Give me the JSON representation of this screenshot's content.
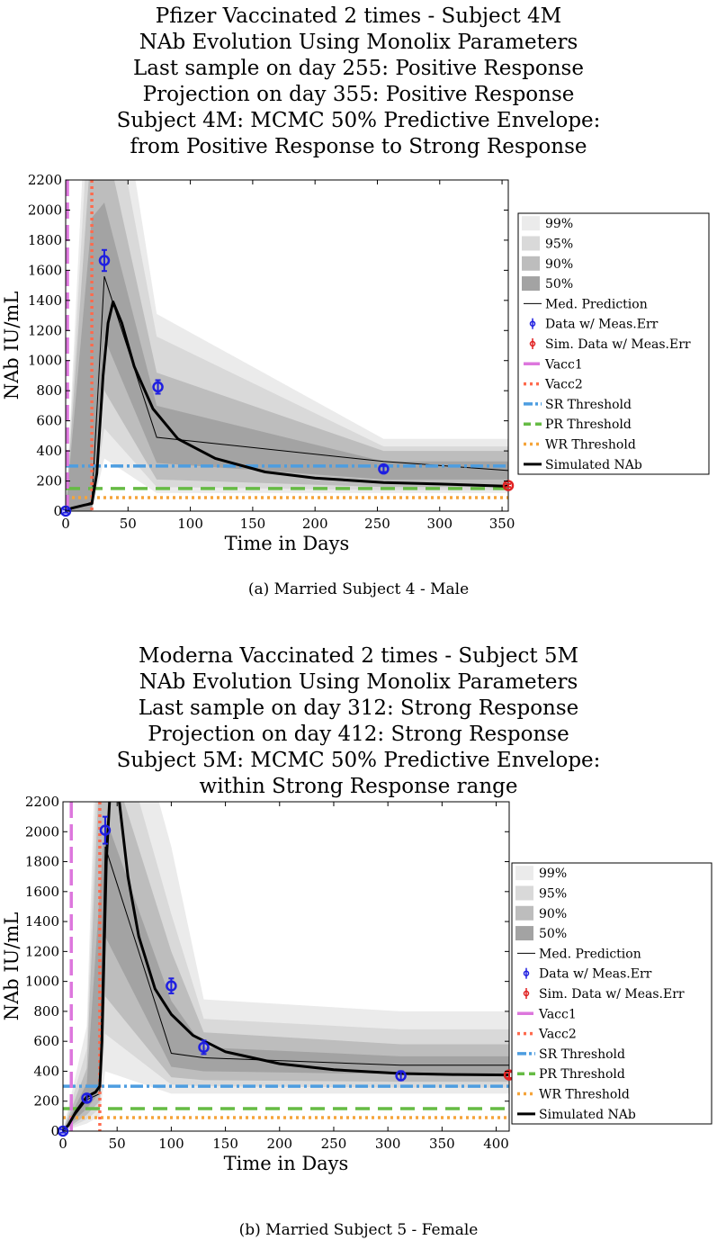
{
  "chart_data": [
    {
      "type": "line",
      "title_lines": [
        "Pfizer Vaccinated 2 times - Subject 4M",
        "NAb Evolution Using Monolix Parameters",
        "Last sample on day 255: Positive Response",
        "Projection on day 355: Positive Response",
        "Subject 4M: MCMC 50% Predictive Envelope:",
        "from Positive Response to Strong Response"
      ],
      "xlabel": "Time in Days",
      "ylabel": "NAb IU/mL",
      "xlim": [
        0,
        355
      ],
      "ylim": [
        0,
        2200
      ],
      "xticks": [
        0,
        50,
        100,
        150,
        200,
        250,
        300,
        350
      ],
      "yticks": [
        0,
        200,
        400,
        600,
        800,
        1000,
        1200,
        1400,
        1600,
        1800,
        2000,
        2200
      ],
      "legend_position": "outside-right",
      "legend": [
        "99%",
        "95%",
        "90%",
        "50%",
        "Med. Prediction",
        "Data w/ Meas.Err",
        "Sim. Data w/ Meas.Err",
        "Vacc1",
        "Vacc2",
        "SR Threshold",
        "PR Threshold",
        "WR Threshold",
        "Simulated NAb"
      ],
      "vacc1": 0,
      "vacc2": 21,
      "thresholds": {
        "SR": 300,
        "PR": 150,
        "WR": 90
      },
      "bands": {
        "x": [
          0,
          21,
          31,
          73,
          255,
          355
        ],
        "p99": {
          "lo": [
            0,
            0,
            350,
            120,
            120,
            120
          ],
          "hi": [
            0,
            3500,
            3500,
            1310,
            480,
            480
          ]
        },
        "p95": {
          "lo": [
            0,
            0,
            550,
            160,
            140,
            140
          ],
          "hi": [
            0,
            3000,
            3000,
            1160,
            430,
            430
          ]
        },
        "p90": {
          "lo": [
            0,
            0,
            800,
            210,
            160,
            160
          ],
          "hi": [
            0,
            2500,
            2500,
            920,
            400,
            400
          ]
        },
        "p50": {
          "lo": [
            0,
            0,
            1150,
            320,
            210,
            210
          ],
          "hi": [
            0,
            1950,
            2050,
            700,
            330,
            330
          ]
        }
      },
      "median": {
        "x": [
          0,
          21,
          31,
          73,
          255,
          355
        ],
        "y": [
          0,
          60,
          1560,
          490,
          330,
          270
        ]
      },
      "simulated": {
        "x": [
          0,
          5,
          15,
          21,
          25,
          30,
          34,
          38,
          45,
          55,
          70,
          90,
          120,
          160,
          200,
          255,
          300,
          355
        ],
        "y": [
          0,
          20,
          40,
          50,
          250,
          900,
          1250,
          1390,
          1250,
          960,
          680,
          480,
          350,
          260,
          220,
          190,
          180,
          165
        ]
      },
      "data_points": [
        {
          "x": 0,
          "y": 0,
          "err": 10
        },
        {
          "x": 31,
          "y": 1665,
          "err": 70
        },
        {
          "x": 74,
          "y": 825,
          "err": 45
        },
        {
          "x": 255,
          "y": 280,
          "err": 20
        }
      ],
      "sim_points": [
        {
          "x": 355,
          "y": 170,
          "err": 10
        }
      ],
      "caption": "(a) Married Subject 4 - Male"
    },
    {
      "type": "line",
      "title_lines": [
        "Moderna Vaccinated 2 times - Subject 5M",
        "NAb Evolution Using Monolix Parameters",
        "Last sample on day 312: Strong Response",
        "Projection on day 412: Strong Response",
        "Subject 5M: MCMC 50% Predictive Envelope:",
        "within Strong Response range"
      ],
      "xlabel": "Time in Days",
      "ylabel": "NAb IU/mL",
      "xlim": [
        0,
        412
      ],
      "ylim": [
        0,
        2200
      ],
      "xticks": [
        0,
        50,
        100,
        150,
        200,
        250,
        300,
        350,
        400
      ],
      "yticks": [
        0,
        200,
        400,
        600,
        800,
        1000,
        1200,
        1400,
        1600,
        1800,
        2000,
        2200
      ],
      "legend_position": "outside-right",
      "legend": [
        "99%",
        "95%",
        "90%",
        "50%",
        "Med. Prediction",
        "Data w/ Meas.Err",
        "Sim. Data w/ Meas.Err",
        "Vacc1",
        "Vacc2",
        "SR Threshold",
        "PR Threshold",
        "WR Threshold",
        "Simulated NAb"
      ],
      "vacc1": 6,
      "vacc2": 34,
      "thresholds": {
        "SR": 300,
        "PR": 150,
        "WR": 90
      },
      "bands": {
        "x": [
          0,
          22,
          34,
          39,
          100,
          130,
          312,
          412
        ],
        "p99": {
          "lo": [
            0,
            50,
            100,
            400,
            250,
            250,
            250,
            250
          ],
          "hi": [
            0,
            700,
            3500,
            3500,
            1900,
            880,
            800,
            800
          ]
        },
        "p95": {
          "lo": [
            0,
            80,
            150,
            650,
            310,
            300,
            290,
            290
          ],
          "hi": [
            0,
            550,
            3000,
            3000,
            1450,
            750,
            680,
            680
          ]
        },
        "p90": {
          "lo": [
            0,
            110,
            200,
            900,
            360,
            340,
            330,
            330
          ],
          "hi": [
            0,
            420,
            2500,
            2600,
            1200,
            660,
            580,
            580
          ]
        },
        "p50": {
          "lo": [
            0,
            150,
            260,
            1300,
            430,
            400,
            380,
            380
          ],
          "hi": [
            0,
            320,
            1600,
            2100,
            870,
            560,
            500,
            500
          ]
        }
      },
      "median": {
        "x": [
          0,
          22,
          34,
          39,
          100,
          130,
          312,
          412
        ],
        "y": [
          0,
          210,
          250,
          1900,
          520,
          490,
          440,
          440
        ]
      },
      "simulated": {
        "x": [
          0,
          5,
          12,
          22,
          30,
          34,
          36,
          40,
          46,
          52,
          60,
          70,
          85,
          100,
          120,
          150,
          200,
          250,
          312,
          360,
          412
        ],
        "y": [
          0,
          40,
          130,
          230,
          260,
          300,
          600,
          1800,
          2600,
          2200,
          1700,
          1300,
          950,
          780,
          640,
          530,
          450,
          410,
          385,
          378,
          375
        ]
      },
      "data_points": [
        {
          "x": 0,
          "y": 0,
          "err": 10
        },
        {
          "x": 22,
          "y": 220,
          "err": 25
        },
        {
          "x": 39,
          "y": 2010,
          "err": 90
        },
        {
          "x": 100,
          "y": 970,
          "err": 50
        },
        {
          "x": 130,
          "y": 560,
          "err": 45
        },
        {
          "x": 312,
          "y": 370,
          "err": 30
        }
      ],
      "sim_points": [
        {
          "x": 412,
          "y": 375,
          "err": 20
        }
      ],
      "caption": "(b) Married Subject 5 - Female"
    }
  ],
  "colors": {
    "p99": "#ebebeb",
    "p95": "#d9d9d9",
    "p90": "#bdbdbd",
    "p50": "#a3a3a3",
    "data": "#1f1fe0",
    "sim": "#e02020",
    "vacc1": "#dd77dd",
    "vacc2": "#ff6a4d",
    "sr": "#4d9de0",
    "pr": "#66bb44",
    "wr": "#f5a43a",
    "simulated": "#000000"
  }
}
